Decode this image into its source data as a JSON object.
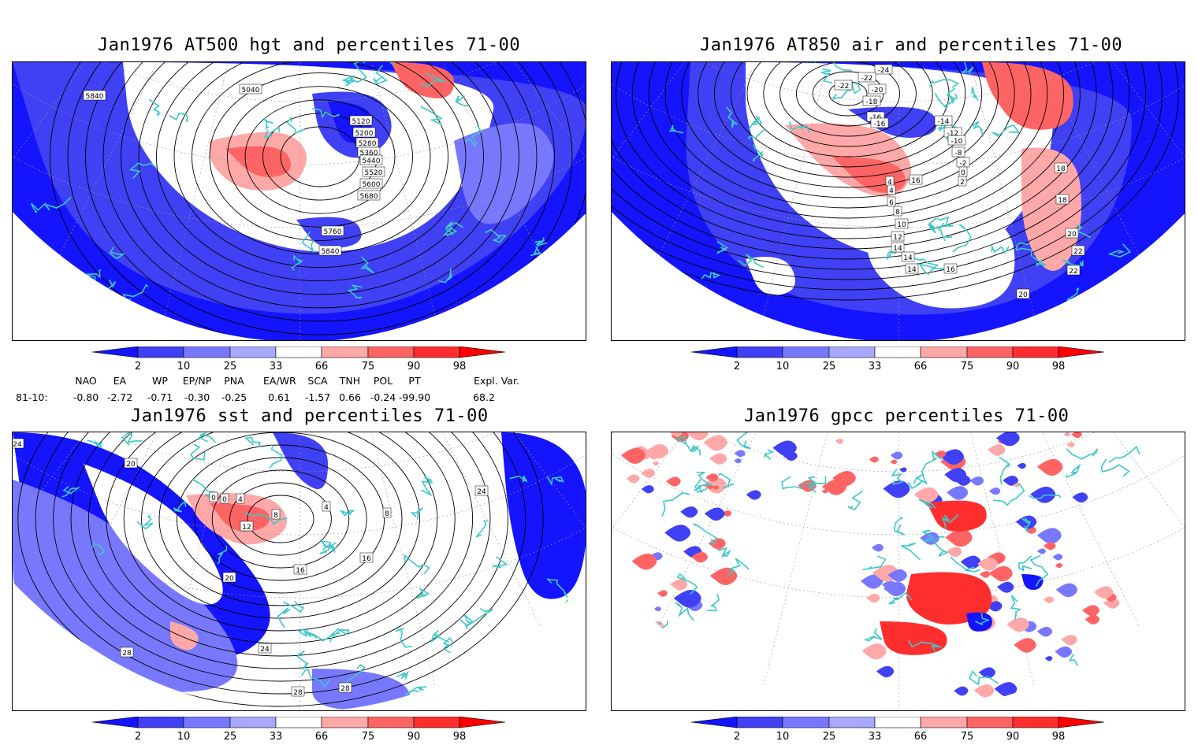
{
  "panels": [
    {
      "id": "p1",
      "title": "Jan1976 AT500 hgt and percentiles 71-00",
      "contour_labels": [
        "5040",
        "5120",
        "5200",
        "5280",
        "5360",
        "5440",
        "5520",
        "5600",
        "5680",
        "5760",
        "5840",
        "5840"
      ]
    },
    {
      "id": "p2",
      "title": "Jan1976 AT850 air and percentiles 71-00",
      "contour_labels": [
        "-24",
        "-22",
        "-22",
        "-20",
        "-18",
        "-16",
        "-16",
        "-14",
        "-12",
        "-10",
        "-8",
        "-2",
        "0",
        "2",
        "4",
        "4",
        "6",
        "8",
        "10",
        "12",
        "14",
        "14",
        "14",
        "16",
        "16",
        "18",
        "18",
        "20",
        "20",
        "22",
        "22"
      ]
    },
    {
      "id": "p3",
      "title": "Jan1976 sst and percentiles 71-00",
      "contour_labels": [
        "24",
        "20",
        "0",
        "0",
        "4",
        "8",
        "12",
        "16",
        "20",
        "24",
        "28",
        "28",
        "28",
        "4",
        "16",
        "8",
        "24"
      ]
    },
    {
      "id": "p4",
      "title": "Jan1976 gpcc percentiles 71-00",
      "contour_labels": []
    }
  ],
  "colorbar": {
    "labels": [
      "2",
      "10",
      "25",
      "33",
      "66",
      "75",
      "90",
      "98"
    ],
    "colors": {
      "lt2": "#1414ff",
      "c2_10": "#4040f5",
      "c10_25": "#7878ff",
      "c25_33": "#a8a8ff",
      "mid": "#ffffff",
      "c66_75": "#ffa8a8",
      "c75_90": "#ff6464",
      "c90_98": "#ff2e2e",
      "gt98": "#ff0000"
    }
  },
  "indices": {
    "headers": [
      "NAO",
      "EA",
      "WP",
      "EP/NP",
      "PNA",
      "EA/WR",
      "SCA",
      "TNH",
      "POL",
      "PT",
      "Expl. Var."
    ],
    "row_label": "81-10:",
    "values": [
      "-0.80",
      "-2.72",
      "-0.71",
      "-0.30",
      "-0.25",
      "0.61",
      "-1.57",
      "0.66",
      "-0.24",
      "-99.90",
      "68.2"
    ]
  },
  "colors": {
    "coast": "#3cc8c8",
    "contour": "#000000"
  }
}
